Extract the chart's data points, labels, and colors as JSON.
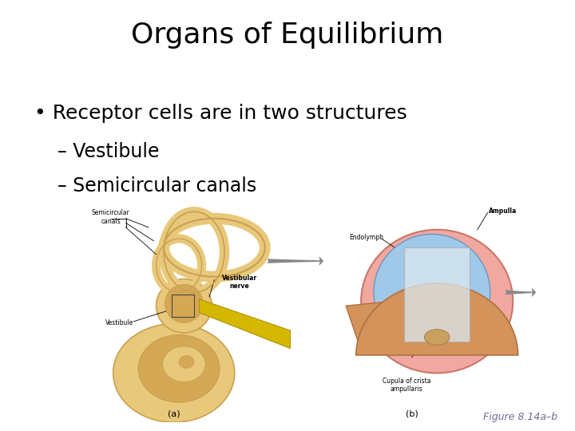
{
  "background_color": "#ffffff",
  "title": "Organs of Equilibrium",
  "title_fontsize": 26,
  "title_color": "#000000",
  "bullet_text": "Receptor cells are in two structures",
  "bullet_fontsize": 18,
  "sub1_text": "– Vestibule",
  "sub1_fontsize": 17,
  "sub2_text": "– Semicircular canals",
  "sub2_fontsize": 17,
  "figure_caption": "Figure 8.14a–b",
  "figure_caption_fontsize": 9,
  "figure_caption_color": "#6b6b9b",
  "ear_color": "#e8c87a",
  "ear_dark": "#c9a050",
  "ear_mid": "#d4a855",
  "nerve_color": "#d4b800",
  "nerve_edge": "#b09000",
  "pink_outer": "#f0a8a0",
  "pink_edge": "#c87868",
  "blue_endo": "#a0c8e8",
  "blue_edge": "#6898c0",
  "orange_tissue": "#d4935a",
  "orange_edge": "#b07040",
  "cupula_face": "#dce8f0",
  "arrow_color": "#888888",
  "label_color": "#000000",
  "label_fontsize": 5.5
}
